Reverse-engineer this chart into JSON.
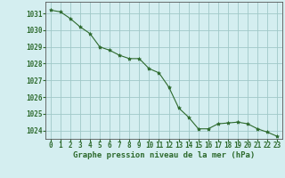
{
  "x": [
    0,
    1,
    2,
    3,
    4,
    5,
    6,
    7,
    8,
    9,
    10,
    11,
    12,
    13,
    14,
    15,
    16,
    17,
    18,
    19,
    20,
    21,
    22,
    23
  ],
  "y": [
    1031.2,
    1031.1,
    1030.7,
    1030.2,
    1029.8,
    1029.0,
    1028.8,
    1028.5,
    1028.3,
    1028.3,
    1027.7,
    1027.45,
    1026.6,
    1025.35,
    1024.8,
    1024.1,
    1024.1,
    1024.4,
    1024.45,
    1024.5,
    1024.4,
    1024.1,
    1023.9,
    1023.65
  ],
  "line_color": "#2d6a2d",
  "marker": "*",
  "marker_size": 3,
  "bg_color": "#d4eef0",
  "grid_color": "#a0c8c8",
  "xlabel": "Graphe pression niveau de la mer (hPa)",
  "label_color": "#2d6a2d",
  "ylim": [
    1023.5,
    1031.7
  ],
  "xlim": [
    -0.5,
    23.5
  ],
  "yticks": [
    1024,
    1025,
    1026,
    1027,
    1028,
    1029,
    1030,
    1031
  ],
  "xticks": [
    0,
    1,
    2,
    3,
    4,
    5,
    6,
    7,
    8,
    9,
    10,
    11,
    12,
    13,
    14,
    15,
    16,
    17,
    18,
    19,
    20,
    21,
    22,
    23
  ],
  "tick_fontsize": 5.5,
  "xlabel_fontsize": 6.5
}
